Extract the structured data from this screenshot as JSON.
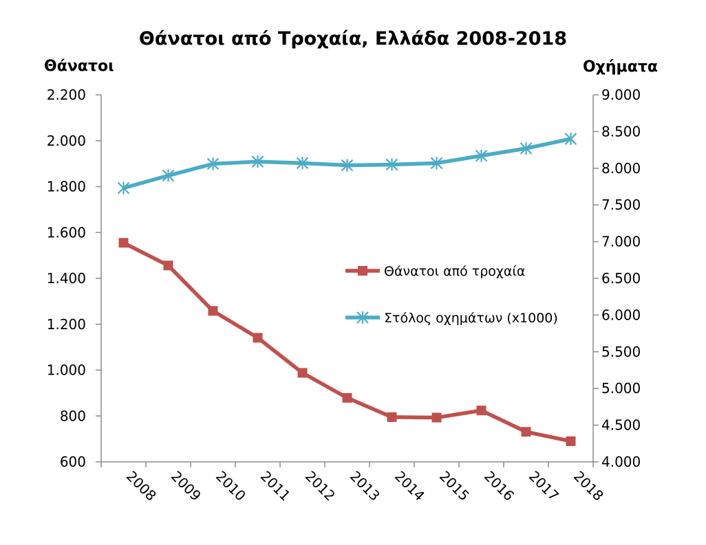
{
  "chart_data": {
    "type": "line",
    "title": "Θάνατοι από Τροχαία, Ελλάδα 2008-2018",
    "ylabel_left": "Θάνατοι",
    "ylabel_right": "Οχήματα",
    "x": [
      "2008",
      "2009",
      "2010",
      "2011",
      "2012",
      "2013",
      "2014",
      "2015",
      "2016",
      "2017",
      "2018"
    ],
    "y_left": {
      "lim": [
        600,
        2200
      ],
      "ticks": [
        600,
        800,
        1000,
        1200,
        1400,
        1600,
        1800,
        2000,
        2200
      ],
      "tick_labels": [
        "600",
        "800",
        "1.000",
        "1.200",
        "1.400",
        "1.600",
        "1.800",
        "2.000",
        "2.200"
      ]
    },
    "y_right": {
      "lim": [
        4000,
        9000
      ],
      "ticks": [
        4000,
        4500,
        5000,
        5500,
        6000,
        6500,
        7000,
        7500,
        8000,
        8500,
        9000
      ],
      "tick_labels": [
        "4.000",
        "4.500",
        "5.000",
        "5.500",
        "6.000",
        "6.500",
        "7.000",
        "7.500",
        "8.000",
        "8.500",
        "9.000"
      ]
    },
    "series": [
      {
        "name": "Θάνατοι από τροχαία",
        "axis": "left",
        "color": "#c0504d",
        "marker": "square",
        "values": [
          1555,
          1456,
          1258,
          1141,
          988,
          879,
          795,
          793,
          824,
          731,
          690
        ]
      },
      {
        "name": "Στόλος οχημάτων (x1000)",
        "axis": "right",
        "color": "#4bacc6",
        "marker": "star",
        "values": [
          7730,
          7900,
          8060,
          8090,
          8070,
          8040,
          8050,
          8070,
          8170,
          8270,
          8400
        ]
      }
    ],
    "grid": false,
    "legend_position": "center-right"
  }
}
